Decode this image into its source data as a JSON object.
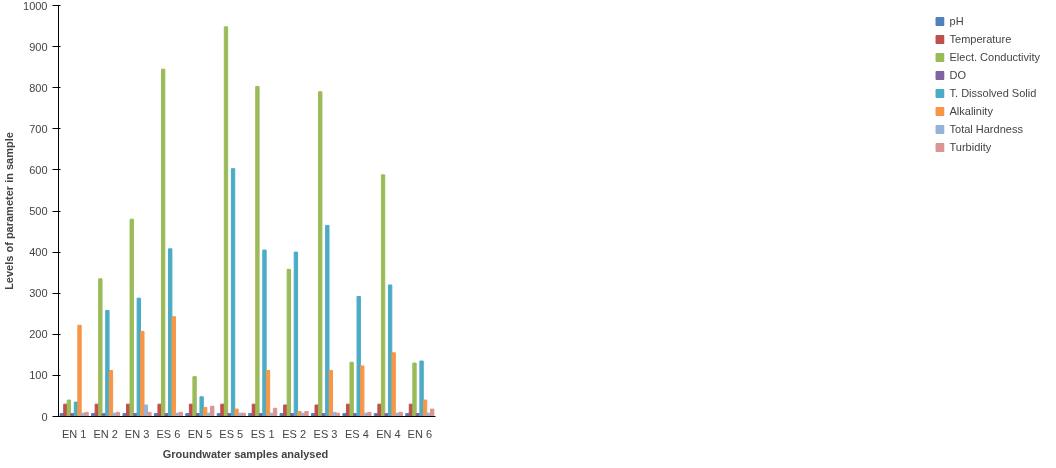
{
  "chart_data": {
    "type": "bar",
    "xlabel": "Groundwater samples  analysed",
    "ylabel": "Levels of parameter in sample",
    "categories": [
      "EN 1",
      "EN 2",
      "EN 3",
      "ES 6",
      "EN 5",
      "ES 5",
      "ES 1",
      "ES 2",
      "ES 3",
      "ES 4",
      "EN 4",
      "EN 6"
    ],
    "ylim": [
      0,
      1000
    ],
    "yticks": [
      0,
      100,
      200,
      300,
      400,
      500,
      600,
      700,
      800,
      900,
      1000
    ],
    "grid": false,
    "legend": "right",
    "series": [
      {
        "name": "pH",
        "color": "#4f81bd",
        "values": [
          7,
          7,
          7,
          7,
          7,
          7,
          7,
          7,
          7,
          7,
          7,
          7
        ]
      },
      {
        "name": "Temperature",
        "color": "#c0504d",
        "values": [
          30,
          30,
          30,
          30,
          30,
          30,
          30,
          28,
          28,
          30,
          30,
          30
        ]
      },
      {
        "name": "Elect. Conductivity",
        "color": "#9bbb59",
        "values": [
          40,
          335,
          480,
          845,
          97,
          948,
          803,
          358,
          790,
          132,
          588,
          130
        ]
      },
      {
        "name": "DO",
        "color": "#8064a2",
        "values": [
          7,
          7,
          7,
          7,
          7,
          7,
          7,
          7,
          7,
          7,
          7,
          7
        ]
      },
      {
        "name": "T. Dissolved Solid",
        "color": "#4bacc6",
        "values": [
          35,
          258,
          288,
          408,
          48,
          603,
          405,
          400,
          465,
          292,
          320,
          135
        ]
      },
      {
        "name": "Alkalinity",
        "color": "#f79646",
        "values": [
          222,
          112,
          207,
          243,
          22,
          18,
          112,
          12,
          112,
          123,
          155,
          40
        ]
      },
      {
        "name": "Total Hardness",
        "color": "#95b3d7",
        "values": [
          8,
          8,
          28,
          8,
          8,
          8,
          8,
          8,
          10,
          8,
          8,
          8
        ]
      },
      {
        "name": "Turbidity",
        "color": "#d99694",
        "values": [
          10,
          10,
          10,
          10,
          25,
          8,
          20,
          12,
          8,
          10,
          10,
          18
        ]
      }
    ]
  }
}
